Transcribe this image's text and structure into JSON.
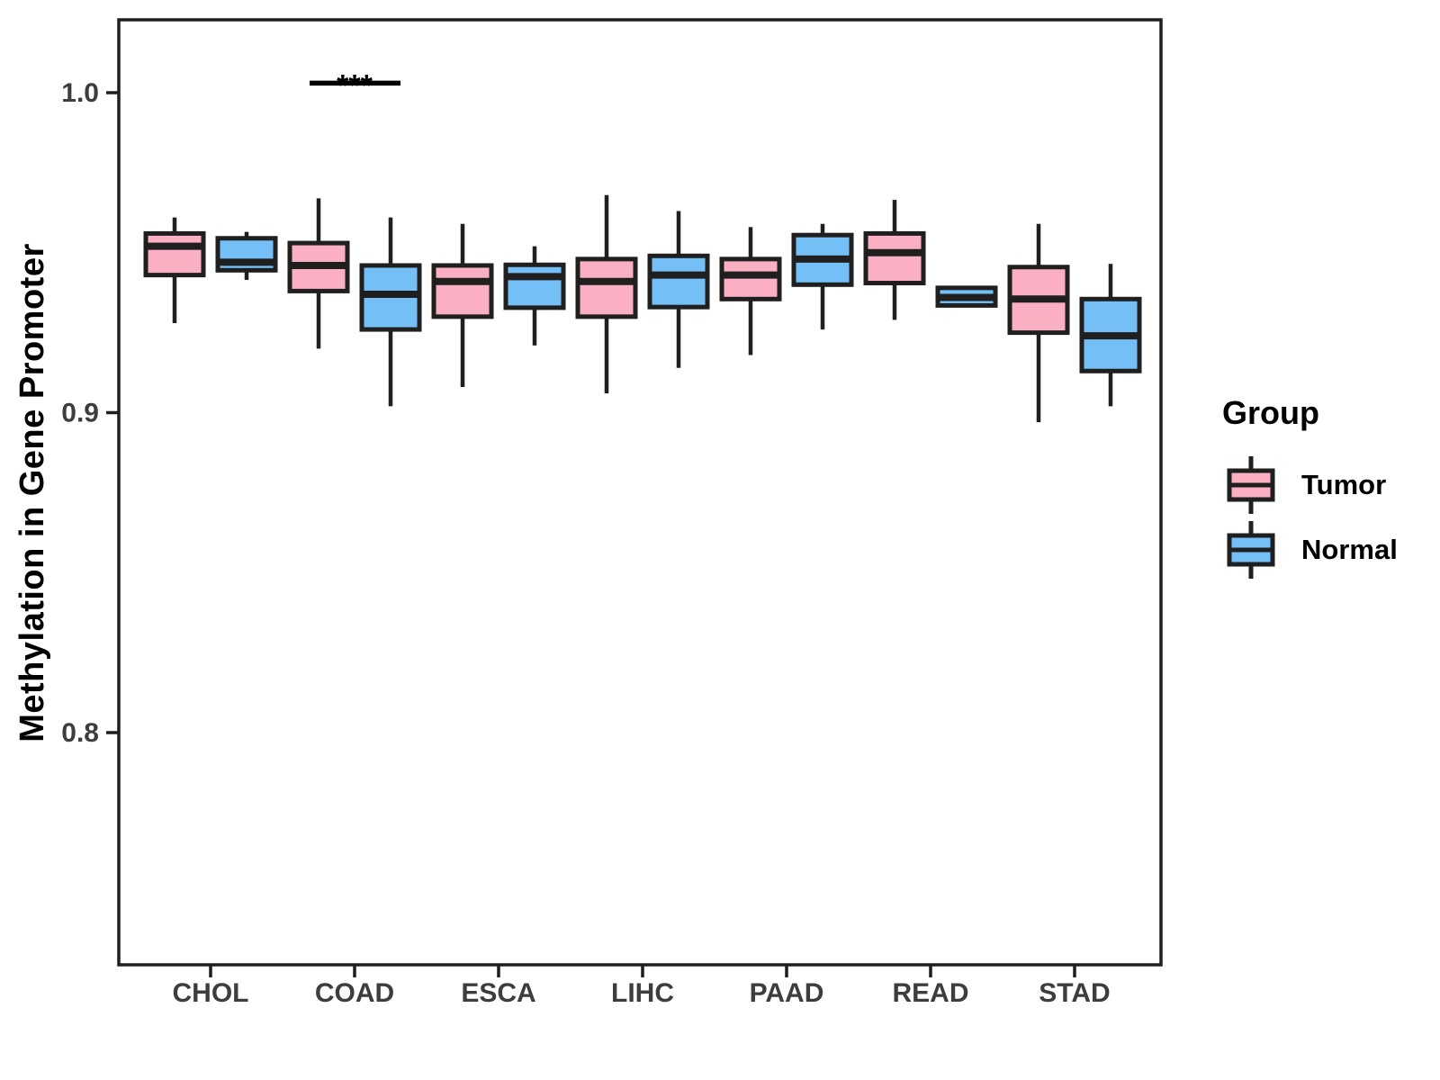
{
  "figure": {
    "y_axis_title": "Methylation in Gene Promoter",
    "legend": {
      "title": "Group",
      "position": "right",
      "entries": [
        {
          "label": "Tumor",
          "color": "#FBAFC2"
        },
        {
          "label": "Normal",
          "color": "#74BFF5"
        }
      ]
    }
  },
  "chart_data": {
    "type": "boxplot",
    "title": "",
    "xlabel": "",
    "ylabel": "Methylation in Gene Promoter",
    "categories": [
      "CHOL",
      "COAD",
      "ESCA",
      "LIHC",
      "PAAD",
      "READ",
      "STAD"
    ],
    "groups": [
      "Tumor",
      "Normal"
    ],
    "colors": {
      "Tumor": "#FBAFC2",
      "Normal": "#74BFF5",
      "stroke": "#1F1F1F",
      "axis_text": "#3D3D3D"
    },
    "y_ticks": [
      1.0,
      0.9,
      0.8
    ],
    "ylim": [
      0.727,
      1.023
    ],
    "grid": "off",
    "legend_position": "right",
    "series": [
      {
        "name": "Tumor",
        "stats": [
          {
            "category": "CHOL",
            "whislo": 0.928,
            "q1": 0.943,
            "med": 0.952,
            "q3": 0.956,
            "whishi": 0.961
          },
          {
            "category": "COAD",
            "whislo": 0.92,
            "q1": 0.938,
            "med": 0.946,
            "q3": 0.953,
            "whishi": 0.967
          },
          {
            "category": "ESCA",
            "whislo": 0.908,
            "q1": 0.93,
            "med": 0.941,
            "q3": 0.946,
            "whishi": 0.959
          },
          {
            "category": "LIHC",
            "whislo": 0.906,
            "q1": 0.93,
            "med": 0.941,
            "q3": 0.948,
            "whishi": 0.968
          },
          {
            "category": "PAAD",
            "whislo": 0.918,
            "q1": 0.9355,
            "med": 0.943,
            "q3": 0.948,
            "whishi": 0.958
          },
          {
            "category": "READ",
            "whislo": 0.929,
            "q1": 0.9405,
            "med": 0.95,
            "q3": 0.956,
            "whishi": 0.9665
          },
          {
            "category": "STAD",
            "whislo": 0.897,
            "q1": 0.925,
            "med": 0.9355,
            "q3": 0.9455,
            "whishi": 0.959
          }
        ]
      },
      {
        "name": "Normal",
        "stats": [
          {
            "category": "CHOL",
            "whislo": 0.9415,
            "q1": 0.9445,
            "med": 0.947,
            "q3": 0.9545,
            "whishi": 0.9565
          },
          {
            "category": "COAD",
            "whislo": 0.902,
            "q1": 0.926,
            "med": 0.937,
            "q3": 0.946,
            "whishi": 0.961
          },
          {
            "category": "ESCA",
            "whislo": 0.921,
            "q1": 0.9328,
            "med": 0.9425,
            "q3": 0.9462,
            "whishi": 0.952
          },
          {
            "category": "LIHC",
            "whislo": 0.914,
            "q1": 0.933,
            "med": 0.943,
            "q3": 0.949,
            "whishi": 0.963
          },
          {
            "category": "PAAD",
            "whislo": 0.926,
            "q1": 0.94,
            "med": 0.948,
            "q3": 0.9555,
            "whishi": 0.959
          },
          {
            "category": "READ",
            "whislo": 0.9335,
            "q1": 0.9335,
            "med": 0.936,
            "q3": 0.939,
            "whishi": 0.939
          },
          {
            "category": "STAD",
            "whislo": 0.902,
            "q1": 0.913,
            "med": 0.924,
            "q3": 0.9355,
            "whishi": 0.9465
          }
        ]
      }
    ],
    "annotations": [
      {
        "label": "***",
        "category": "COAD",
        "y": 1.003
      }
    ]
  }
}
